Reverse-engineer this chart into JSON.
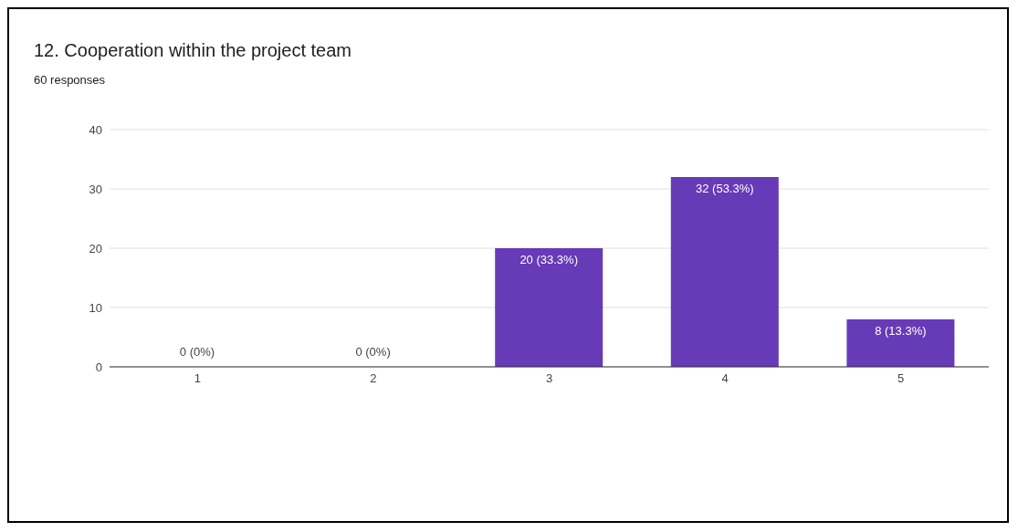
{
  "chart_data": {
    "type": "bar",
    "title": "12. Cooperation within the project team",
    "subtitle": "60 responses",
    "categories": [
      "1",
      "2",
      "3",
      "4",
      "5"
    ],
    "values": [
      0,
      0,
      20,
      32,
      8
    ],
    "value_labels": [
      "0 (0%)",
      "0 (0%)",
      "20 (33.3%)",
      "32 (53.3%)",
      "8 (13.3%)"
    ],
    "color": "#673ab7",
    "ylim": [
      0,
      40
    ],
    "yticks": [
      0,
      10,
      20,
      30,
      40
    ],
    "grid": "y"
  }
}
